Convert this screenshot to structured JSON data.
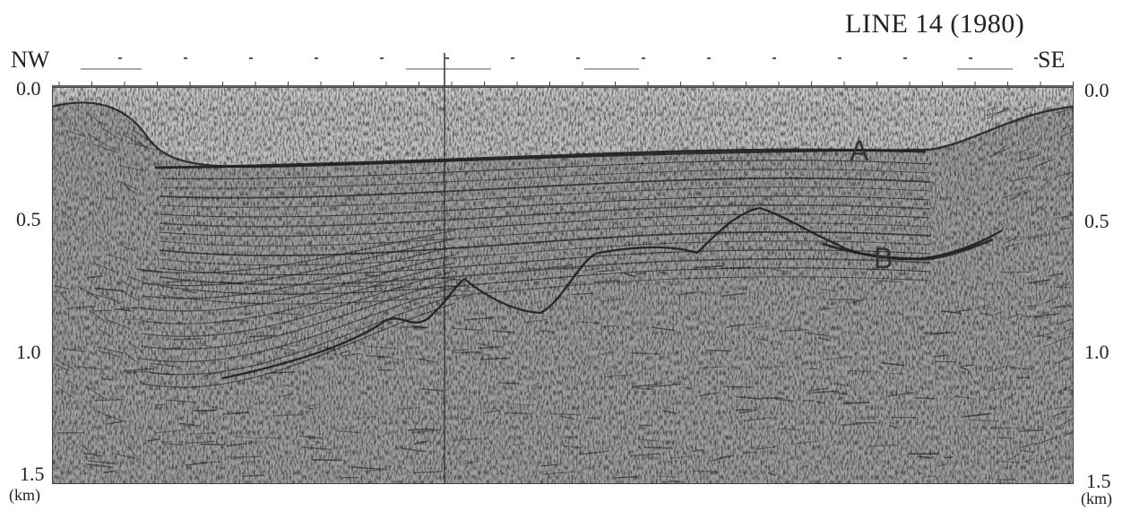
{
  "title": "LINE 14 (1980)",
  "direction": {
    "left": "NW",
    "right": "SE"
  },
  "depth_axis": {
    "ticks": [
      "0.0",
      "0.5",
      "1.0",
      "1.5"
    ],
    "unit": "(km)",
    "range": [
      0.0,
      1.5
    ]
  },
  "horizons": [
    {
      "label": "A"
    },
    {
      "label": "B"
    }
  ],
  "colors": {
    "background": "#ffffff",
    "ink": "#222222",
    "seismic_base": "#8c8c8c"
  }
}
